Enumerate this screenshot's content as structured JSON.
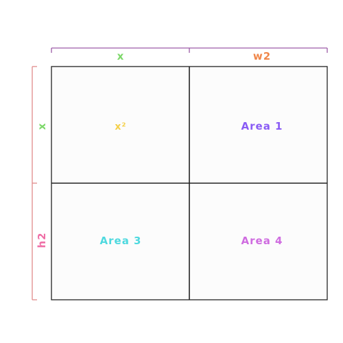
{
  "top_labels": {
    "left": "x",
    "right": "w2"
  },
  "side_labels": {
    "top": "x",
    "bottom": "h2"
  },
  "cells": {
    "top_left": "x²",
    "top_right": "Area 1",
    "bottom_left": "Area 3",
    "bottom_right": "Area 4"
  },
  "colors": {
    "x_label": "#7dd86a",
    "w2_label": "#f0874a",
    "h2_label": "#ef6fa6",
    "x_squared": "#f4d04a",
    "area1": "#8a5cf5",
    "area3": "#4fd9df",
    "area4": "#cf6ce0",
    "top_bracket": "#9c5aa6",
    "side_bracket": "#e08a8a",
    "grid_line": "#222222",
    "cell_fill": "#fcfcfc"
  }
}
